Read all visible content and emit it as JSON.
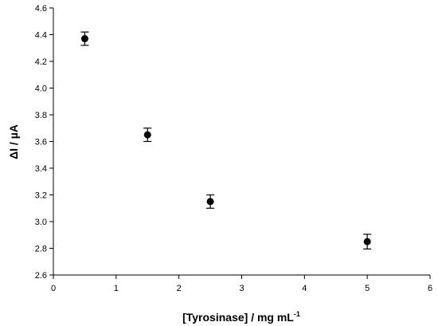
{
  "chart_data": {
    "type": "scatter",
    "title": "",
    "xlabel": "[Tyrosinase] / mg mL",
    "xlabel_superscript": "-1",
    "ylabel": "ΔI / µA",
    "xlim": [
      0,
      6
    ],
    "ylim": [
      2.6,
      4.6
    ],
    "x_ticks": [
      0,
      1,
      2,
      3,
      4,
      5,
      6
    ],
    "x_tick_labels": [
      "0",
      "1",
      "2",
      "3",
      "4",
      "5",
      "6"
    ],
    "y_ticks": [
      2.6,
      2.8,
      3.0,
      3.2,
      3.4,
      3.6,
      3.8,
      4.0,
      4.2,
      4.4,
      4.6
    ],
    "y_tick_labels": [
      "2.6",
      "2.8",
      "3.0",
      "3.2",
      "3.4",
      "3.6",
      "3.8",
      "4.0",
      "4.2",
      "4.4",
      "4.6"
    ],
    "grid": false,
    "legend": "none",
    "marker_color": "#000000",
    "series": [
      {
        "x": [
          0.5,
          1.5,
          2.5,
          5.0
        ],
        "y": [
          4.37,
          3.65,
          3.15,
          2.85
        ],
        "error": [
          0.05,
          0.05,
          0.05,
          0.055
        ]
      }
    ]
  }
}
